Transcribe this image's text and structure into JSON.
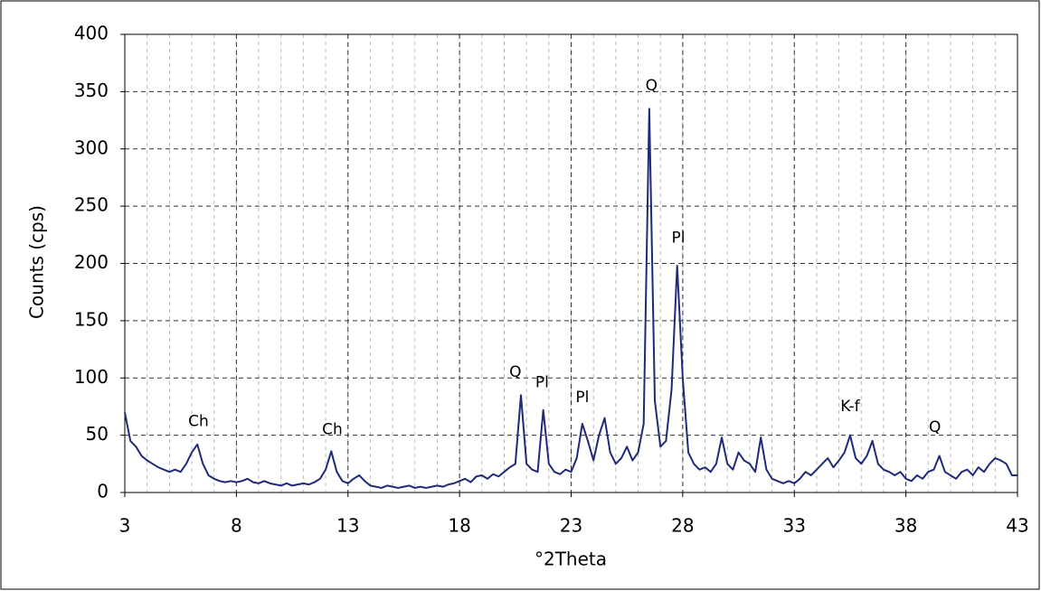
{
  "chart_data": {
    "type": "line",
    "x_label": "°2Theta",
    "y_label": "Counts (cps)",
    "x": [
      3,
      3.25,
      3.5,
      3.75,
      4,
      4.25,
      4.5,
      4.75,
      5,
      5.25,
      5.5,
      5.75,
      6,
      6.25,
      6.5,
      6.75,
      7,
      7.25,
      7.5,
      7.75,
      8,
      8.25,
      8.5,
      8.75,
      9,
      9.25,
      9.5,
      9.75,
      10,
      10.25,
      10.5,
      10.75,
      11,
      11.25,
      11.5,
      11.75,
      12,
      12.25,
      12.5,
      12.75,
      13,
      13.25,
      13.5,
      13.75,
      14,
      14.25,
      14.5,
      14.75,
      15,
      15.25,
      15.5,
      15.75,
      16,
      16.25,
      16.5,
      16.75,
      17,
      17.25,
      17.5,
      17.75,
      18,
      18.25,
      18.5,
      18.75,
      19,
      19.25,
      19.5,
      19.75,
      20,
      20.25,
      20.5,
      20.75,
      21,
      21.25,
      21.5,
      21.75,
      22,
      22.25,
      22.5,
      22.75,
      23,
      23.25,
      23.5,
      23.75,
      24,
      24.25,
      24.5,
      24.75,
      25,
      25.25,
      25.5,
      25.75,
      26,
      26.25,
      26.5,
      26.75,
      27,
      27.25,
      27.5,
      27.75,
      28,
      28.25,
      28.5,
      28.75,
      29,
      29.25,
      29.5,
      29.75,
      30,
      30.25,
      30.5,
      30.75,
      31,
      31.25,
      31.5,
      31.75,
      32,
      32.25,
      32.5,
      32.75,
      33,
      33.25,
      33.5,
      33.75,
      34,
      34.25,
      34.5,
      34.75,
      35,
      35.25,
      35.5,
      35.75,
      36,
      36.25,
      36.5,
      36.75,
      37,
      37.25,
      37.5,
      37.75,
      38,
      38.25,
      38.5,
      38.75,
      39,
      39.25,
      39.5,
      39.75,
      40,
      40.25,
      40.5,
      40.75,
      41,
      41.25,
      41.5,
      41.75,
      42,
      42.25,
      42.5,
      42.75,
      43
    ],
    "series": [
      {
        "color": "#1f2a7a",
        "values": [
          70,
          45,
          40,
          32,
          28,
          25,
          22,
          20,
          18,
          20,
          18,
          25,
          35,
          42,
          25,
          15,
          12,
          10,
          9,
          10,
          9,
          10,
          12,
          9,
          8,
          10,
          8,
          7,
          6,
          8,
          6,
          7,
          8,
          7,
          9,
          12,
          20,
          36,
          18,
          10,
          8,
          12,
          15,
          10,
          6,
          5,
          4,
          6,
          5,
          4,
          5,
          6,
          4,
          5,
          4,
          5,
          6,
          5,
          7,
          8,
          10,
          12,
          9,
          14,
          15,
          12,
          16,
          14,
          18,
          22,
          25,
          85,
          25,
          20,
          18,
          72,
          25,
          18,
          16,
          20,
          18,
          30,
          60,
          45,
          28,
          50,
          65,
          35,
          25,
          30,
          40,
          28,
          35,
          60,
          335,
          80,
          40,
          45,
          90,
          198,
          100,
          35,
          25,
          20,
          22,
          18,
          25,
          48,
          25,
          20,
          35,
          28,
          25,
          18,
          48,
          20,
          12,
          10,
          8,
          10,
          8,
          12,
          18,
          15,
          20,
          25,
          30,
          22,
          28,
          35,
          50,
          30,
          25,
          32,
          45,
          25,
          20,
          18,
          15,
          18,
          12,
          10,
          15,
          12,
          18,
          20,
          32,
          18,
          15,
          12,
          18,
          20,
          15,
          22,
          18,
          25,
          30,
          28,
          25,
          15,
          15
        ]
      }
    ],
    "annotations": [
      {
        "text": "Ch",
        "x": 6.3,
        "y": 62
      },
      {
        "text": "Ch",
        "x": 12.3,
        "y": 55
      },
      {
        "text": "Q",
        "x": 20.5,
        "y": 105
      },
      {
        "text": "Pl",
        "x": 21.7,
        "y": 96
      },
      {
        "text": "Pl",
        "x": 23.5,
        "y": 83
      },
      {
        "text": "Q",
        "x": 26.6,
        "y": 355
      },
      {
        "text": "Pl",
        "x": 27.8,
        "y": 222
      },
      {
        "text": "K-f",
        "x": 35.5,
        "y": 75
      },
      {
        "text": "Q",
        "x": 39.3,
        "y": 57
      }
    ],
    "xlim": [
      3,
      43
    ],
    "xticks": [
      3,
      8,
      13,
      18,
      23,
      28,
      33,
      38,
      43
    ],
    "xminor_step": 1,
    "ylim": [
      0,
      400
    ],
    "yticks": [
      0,
      50,
      100,
      150,
      200,
      250,
      300,
      350,
      400
    ],
    "grid": true
  }
}
